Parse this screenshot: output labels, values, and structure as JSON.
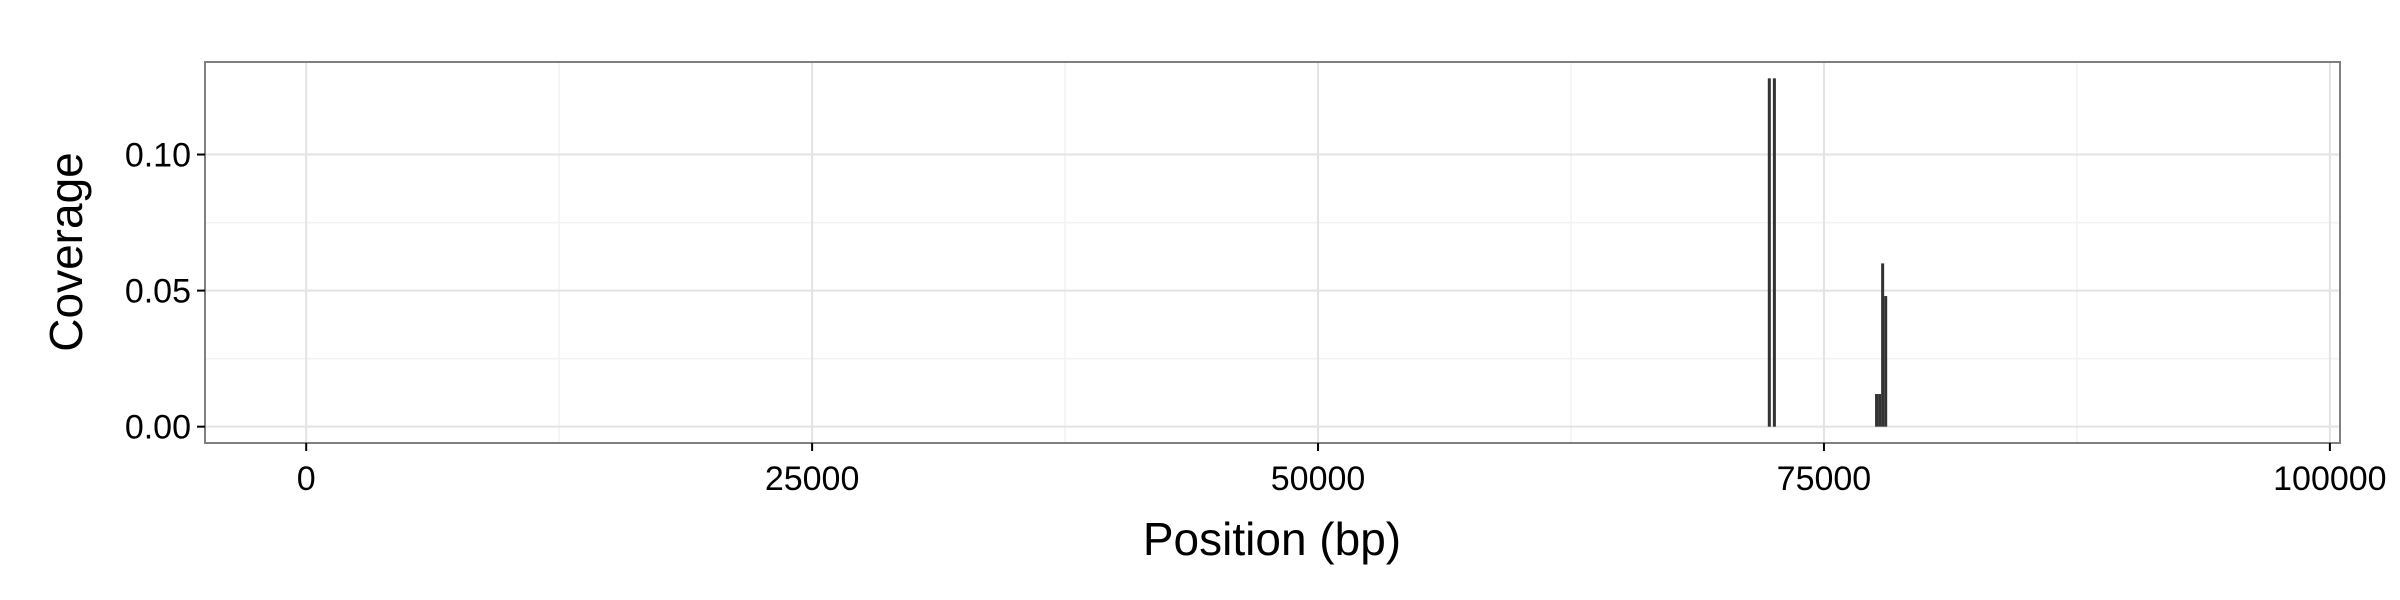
{
  "chart_data": {
    "type": "bar",
    "xlabel": "Position (bp)",
    "ylabel": "Coverage",
    "xlim": [
      -5000,
      100500
    ],
    "ylim": [
      -0.006,
      0.134
    ],
    "x_ticks": [
      0,
      25000,
      50000,
      75000,
      100000
    ],
    "x_tick_labels": [
      "0",
      "25000",
      "50000",
      "75000",
      "100000"
    ],
    "y_ticks": [
      0.0,
      0.05,
      0.1
    ],
    "y_tick_labels": [
      "0.00",
      "0.05",
      "0.10"
    ],
    "grid": true,
    "legend": "none",
    "bar_color": "#333333",
    "bar_width_bp": 150,
    "x": [
      72300,
      72550,
      77600,
      77750,
      77900,
      78050
    ],
    "values": [
      0.128,
      0.128,
      0.012,
      0.012,
      0.06,
      0.048
    ]
  }
}
